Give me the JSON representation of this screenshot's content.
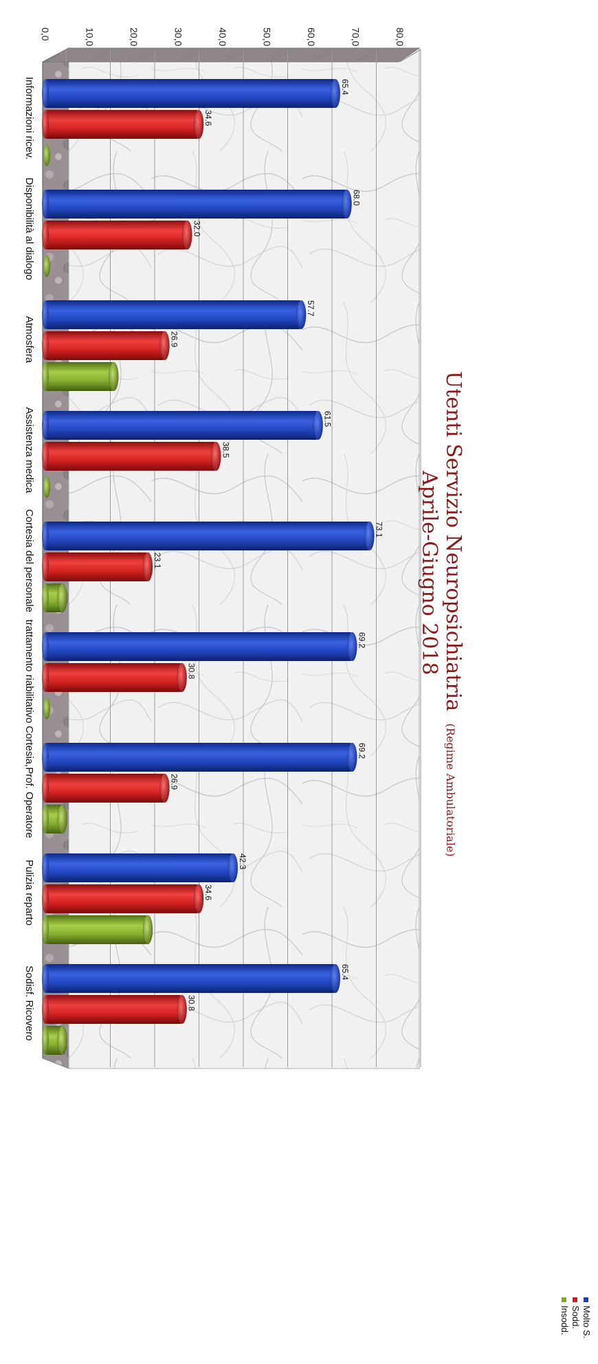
{
  "chart_data": {
    "type": "bar",
    "orientation": "rotated-90",
    "title": "Utenti Servizio Neuropsichiatria",
    "title_note": "(Regime Ambulatoriale)",
    "subtitle": "Aprile-Giugno 2018",
    "categories": [
      "Informazioni ricev.",
      "Disponibilità al dialogo",
      "Atmosfera",
      "Assistenza medica",
      "Cortesia del personale",
      "trattamento riabilitativo",
      "Cortesia,Prof. Operatore",
      "Pulizia reparto",
      "Sodisf. Ricovero"
    ],
    "series": [
      {
        "name": "Molto S.",
        "color": "#1f3fb0",
        "values": [
          65.4,
          68.0,
          57.7,
          61.5,
          73.1,
          69.2,
          69.2,
          42.3,
          65.4
        ]
      },
      {
        "name": "Sodd.",
        "color": "#cc1f1f",
        "values": [
          34.6,
          32.0,
          26.9,
          38.5,
          23.1,
          30.8,
          26.9,
          34.6,
          30.8
        ]
      },
      {
        "name": "Insodd.",
        "color": "#7fa82a",
        "values": [
          0,
          0,
          15.4,
          0,
          3.8,
          0,
          3.8,
          23.1,
          3.8
        ]
      }
    ],
    "data_labels": [
      [
        "65.4",
        "68.0",
        "57.7",
        "61.5",
        "73.1",
        "69.2",
        "69.2",
        "42.3",
        "65.4"
      ],
      [
        "34.6",
        "32.0",
        "26.9",
        "38.5",
        "23.1",
        "30.8",
        "26.9",
        "34.6",
        "30.8"
      ]
    ],
    "ylim": [
      0,
      80
    ],
    "y_ticks": [
      "0,0",
      "10,0",
      "20,0",
      "30,0",
      "40,0",
      "50,0",
      "60,0",
      "70,0",
      "80,0"
    ],
    "grid": true,
    "legend_position": "right"
  }
}
